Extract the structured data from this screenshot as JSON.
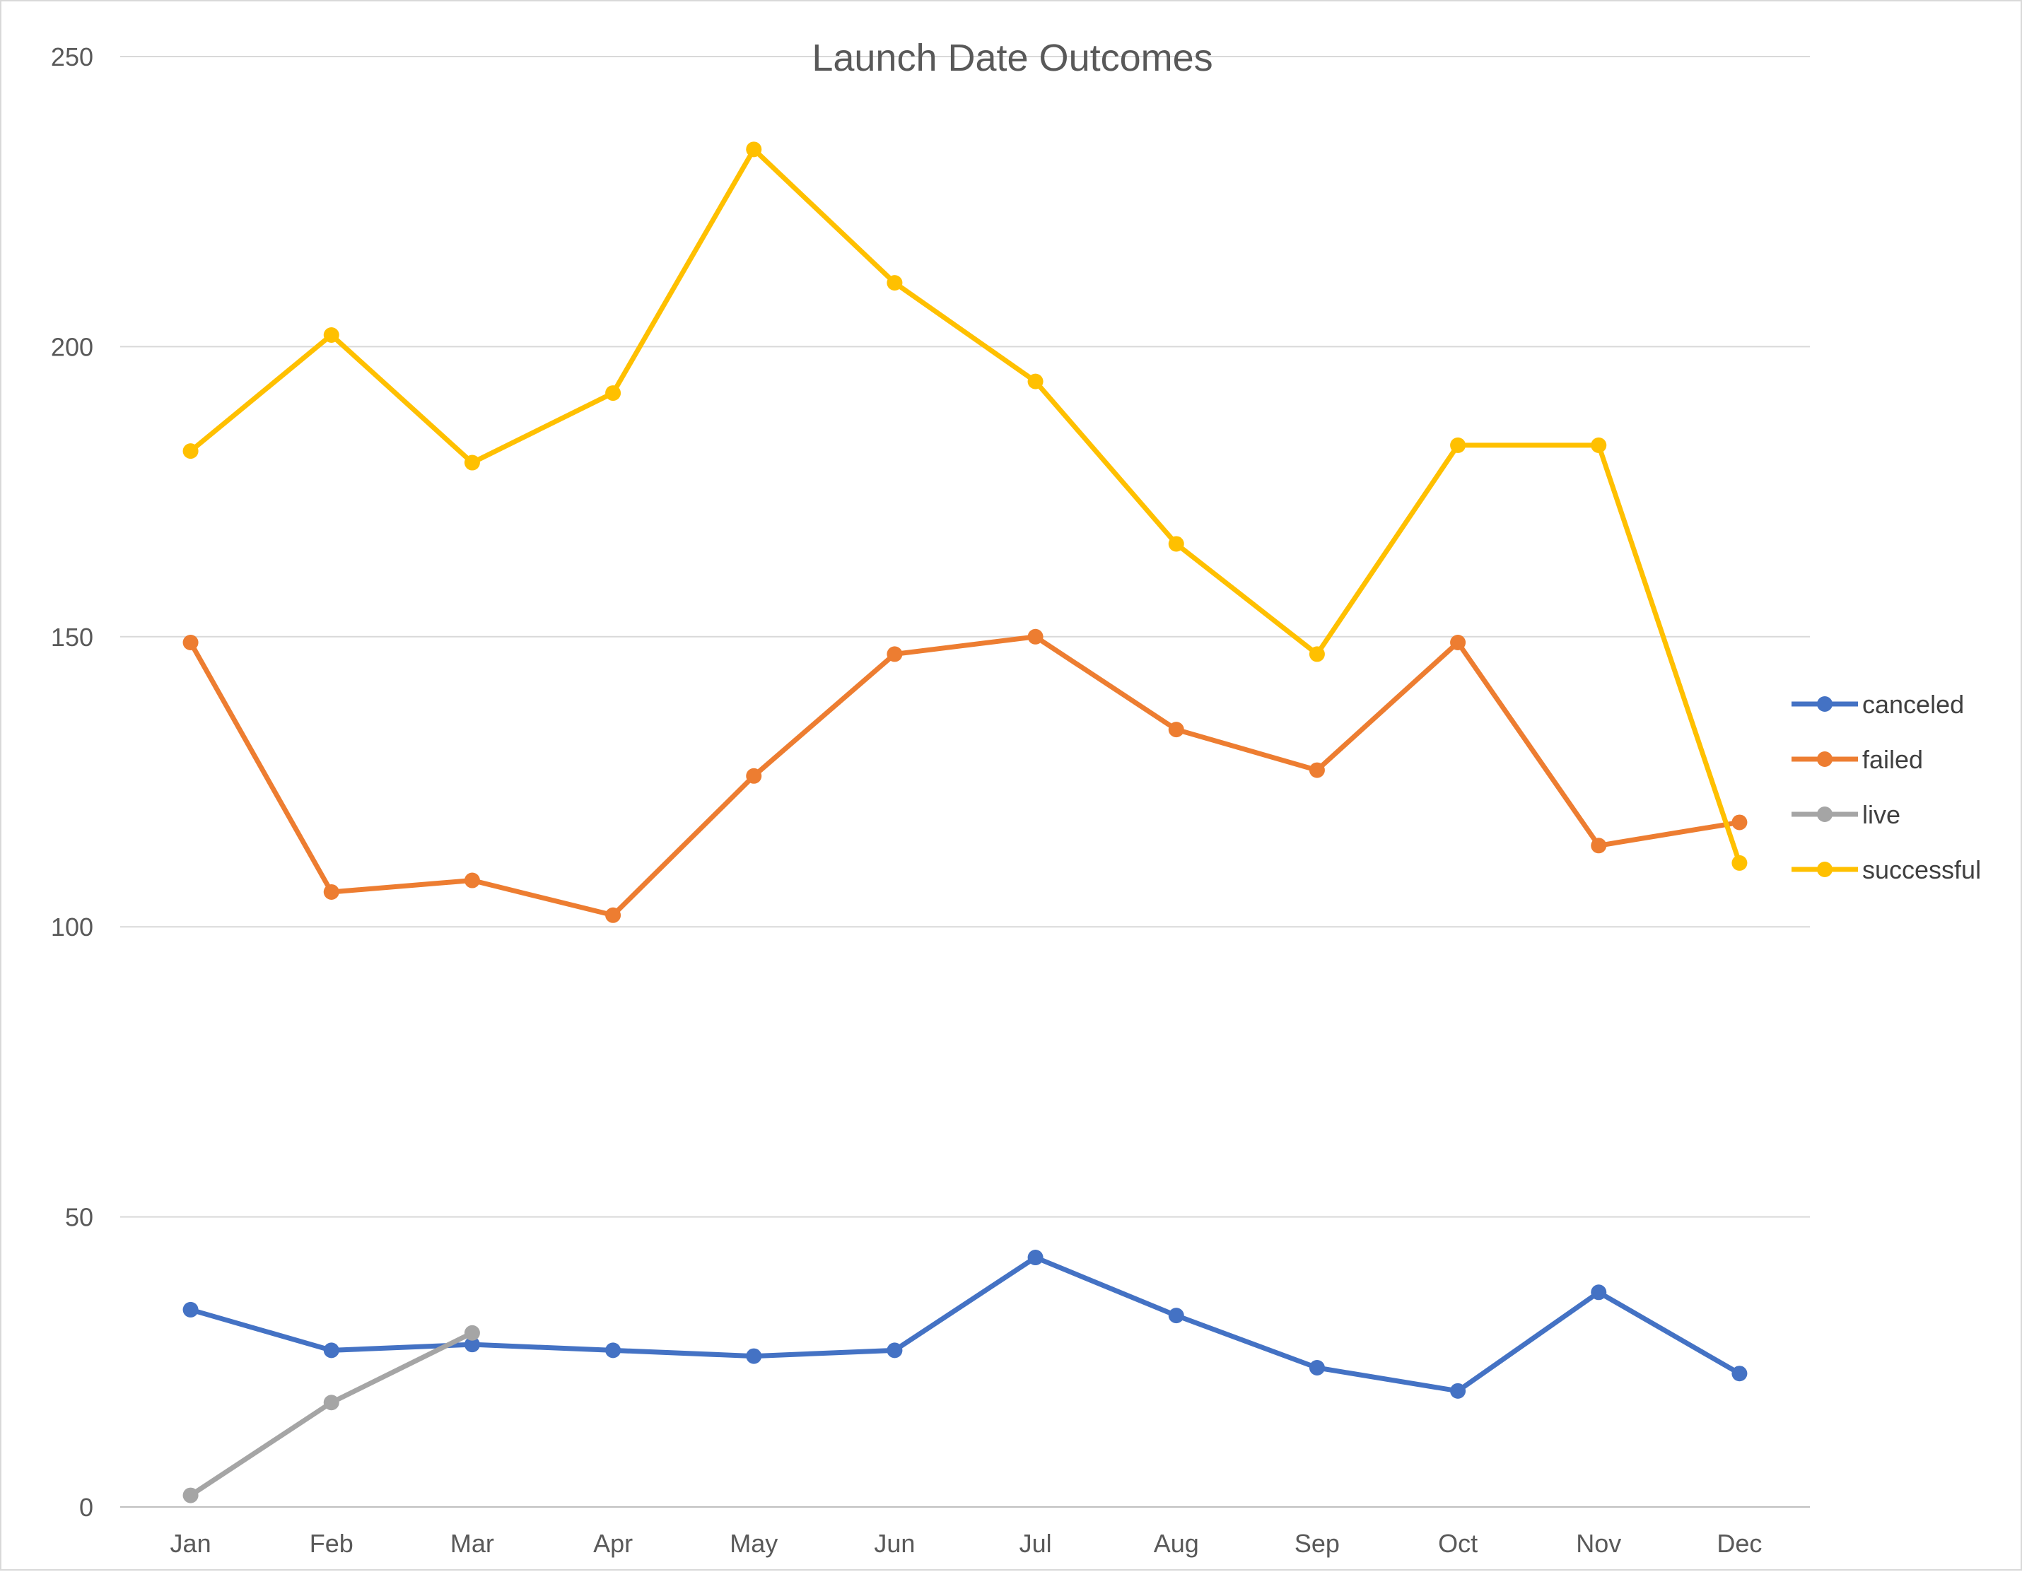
{
  "chart_data": {
    "type": "line",
    "title": "Launch Date Outcomes",
    "xlabel": "",
    "ylabel": "",
    "ylim": [
      0,
      250
    ],
    "yticks": [
      0,
      50,
      100,
      150,
      200,
      250
    ],
    "grid": true,
    "legend_position": "right",
    "categories": [
      "Jan",
      "Feb",
      "Mar",
      "Apr",
      "May",
      "Jun",
      "Jul",
      "Aug",
      "Sep",
      "Oct",
      "Nov",
      "Dec"
    ],
    "series": [
      {
        "name": "canceled",
        "color": "#4472C4",
        "values": [
          34,
          27,
          28,
          27,
          26,
          27,
          43,
          33,
          24,
          20,
          37,
          23
        ]
      },
      {
        "name": "failed",
        "color": "#ED7D31",
        "values": [
          149,
          106,
          108,
          102,
          126,
          147,
          150,
          134,
          127,
          149,
          114,
          118
        ]
      },
      {
        "name": "live",
        "color": "#A5A5A5",
        "values": [
          2,
          18,
          30,
          null,
          null,
          null,
          null,
          null,
          null,
          null,
          null,
          null
        ]
      },
      {
        "name": "successful",
        "color": "#FFC000",
        "values": [
          182,
          202,
          180,
          192,
          234,
          211,
          194,
          166,
          147,
          183,
          183,
          111
        ]
      }
    ]
  }
}
